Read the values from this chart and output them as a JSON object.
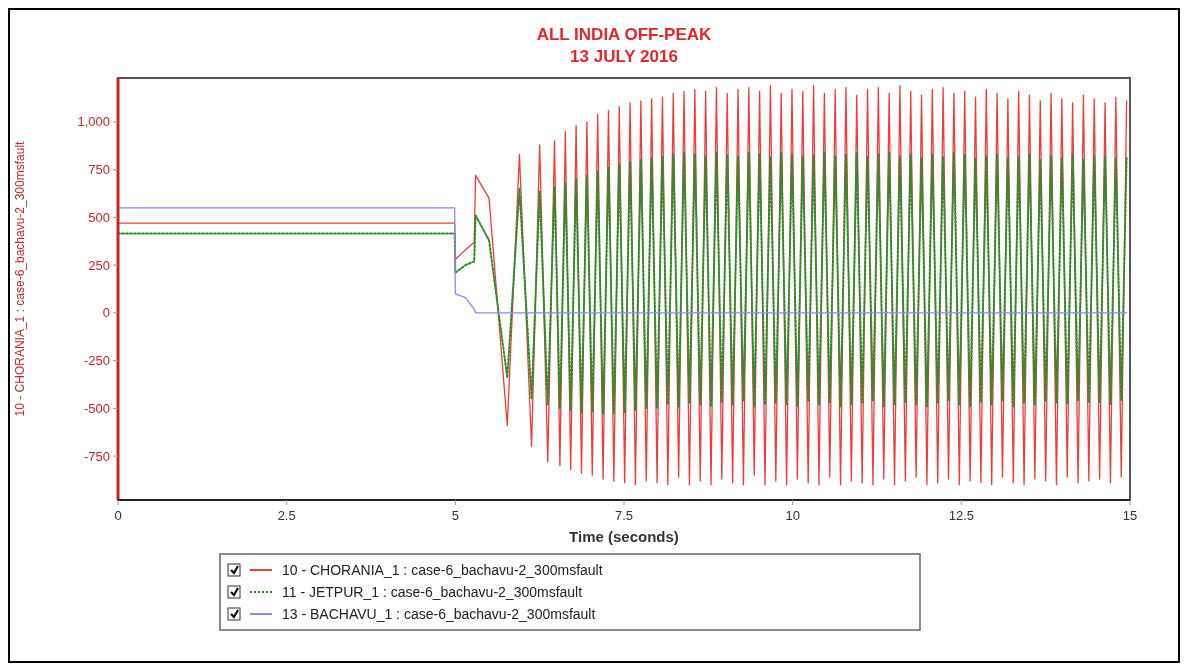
{
  "chart_data": {
    "type": "line",
    "title": "ALL INDIA OFF-PEAK",
    "subtitle": "13 JULY 2016",
    "xlabel": "Time (seconds)",
    "ylabel": "10 - CHORANIA_1 : case-6_bachavu-2_300msfault",
    "xlim": [
      0,
      15
    ],
    "xticks": [
      0,
      2.5,
      5,
      7.5,
      10,
      12.5,
      15
    ],
    "ylim": [
      -980,
      1230
    ],
    "yticks": [
      {
        "value": -750,
        "label": "-750"
      },
      {
        "value": -500,
        "label": "-500"
      },
      {
        "value": -250,
        "label": "-250"
      },
      0,
      250,
      500,
      750,
      {
        "value": 1000,
        "label": "1,000"
      }
    ],
    "grid": false,
    "legend": "bottom",
    "marker": "none",
    "x": [
      0,
      4.99,
      5.0,
      5.15,
      5.28,
      5.3,
      5.5,
      5.77,
      5.95,
      6.13,
      6.25,
      6.37,
      6.47,
      6.55,
      6.63,
      6.71,
      6.79,
      6.87,
      6.95,
      7.03,
      7.11,
      7.19,
      7.27,
      7.35,
      7.43,
      7.51,
      7.59,
      7.67,
      7.75,
      7.83,
      7.91,
      7.99,
      8.07,
      8.15,
      8.23,
      8.31,
      8.39,
      8.47,
      8.55,
      8.63,
      8.71,
      8.79,
      8.87,
      8.95,
      9.03,
      9.11,
      9.19,
      9.27,
      9.35,
      9.43,
      9.51,
      9.59,
      9.67,
      9.75,
      9.83,
      9.91,
      9.99,
      10.07,
      10.15,
      10.23,
      10.31,
      10.39,
      10.47,
      10.55,
      10.63,
      10.71,
      10.79,
      10.87,
      10.95,
      11.03,
      11.11,
      11.19,
      11.27,
      11.35,
      11.43,
      11.51,
      11.59,
      11.67,
      11.75,
      11.83,
      11.91,
      11.99,
      12.07,
      12.15,
      12.23,
      12.31,
      12.39,
      12.47,
      12.55,
      12.63,
      12.71,
      12.79,
      12.87,
      12.95,
      13.03,
      13.11,
      13.19,
      13.27,
      13.35,
      13.43,
      13.51,
      13.59,
      13.67,
      13.75,
      13.83,
      13.91,
      13.99,
      14.07,
      14.15,
      14.23,
      14.31,
      14.39,
      14.47,
      14.55,
      14.63,
      14.71,
      14.79,
      14.87,
      14.95
    ],
    "series": [
      {
        "name": "10 - CHORANIA_1 : case-6_bachavu-2_300msfault",
        "color": "#f03c3c",
        "line_style": "solid",
        "values": [
          470,
          470,
          280,
          330,
          370,
          720,
          600,
          -590,
          830,
          -700,
          880,
          -780,
          900,
          -800,
          950,
          -820,
          980,
          -840,
          1000,
          -850,
          1040,
          -870,
          1060,
          -880,
          1080,
          -890,
          1100,
          -900,
          1110,
          -880,
          1120,
          -890,
          1130,
          -900,
          1150,
          -860,
          1160,
          -900,
          1170,
          -880,
          1160,
          -900,
          1180,
          -870,
          1150,
          -890,
          1170,
          -900,
          1180,
          -850,
          1160,
          -900,
          1190,
          -880,
          1150,
          -900,
          1170,
          -870,
          1160,
          -890,
          1190,
          -900,
          1150,
          -860,
          1170,
          -900,
          1180,
          -880,
          1140,
          -890,
          1170,
          -900,
          1180,
          -870,
          1150,
          -900,
          1190,
          -880,
          1160,
          -860,
          1140,
          -900,
          1170,
          -890,
          1180,
          -870,
          1150,
          -900,
          1160,
          -880,
          1130,
          -890,
          1170,
          -900,
          1150,
          -860,
          1120,
          -890,
          1160,
          -900,
          1140,
          -870,
          1110,
          -880,
          1150,
          -900,
          1120,
          -860,
          1100,
          -890,
          1140,
          -880,
          1120,
          -870,
          1100,
          -890,
          1130,
          -860,
          1110
        ]
      },
      {
        "name": "11 - JETPUR_1 : case-6_bachavu-2_300msfault",
        "color": "#2e8b2e",
        "line_style": "dotted",
        "values": [
          415,
          415,
          210,
          250,
          270,
          510,
          380,
          -340,
          650,
          -450,
          640,
          -480,
          660,
          -500,
          680,
          -510,
          700,
          -520,
          720,
          -520,
          740,
          -530,
          760,
          -530,
          780,
          -520,
          790,
          -510,
          800,
          -500,
          810,
          -500,
          820,
          -480,
          830,
          -490,
          840,
          -470,
          830,
          -480,
          820,
          -490,
          840,
          -470,
          830,
          -480,
          820,
          -460,
          840,
          -490,
          830,
          -480,
          820,
          -470,
          840,
          -480,
          830,
          -490,
          820,
          -460,
          830,
          -480,
          840,
          -470,
          820,
          -490,
          830,
          -480,
          840,
          -470,
          820,
          -460,
          830,
          -490,
          840,
          -480,
          820,
          -470,
          830,
          -480,
          810,
          -490,
          830,
          -470,
          820,
          -460,
          840,
          -480,
          830,
          -490,
          810,
          -470,
          820,
          -480,
          830,
          -460,
          810,
          -490,
          820,
          -470,
          830,
          -480,
          800,
          -460,
          820,
          -470,
          810,
          -480,
          830,
          -460,
          800,
          -470,
          820,
          -470,
          820,
          -480,
          810,
          -460,
          820
        ]
      },
      {
        "name": "13 - BACHAVU_1 : case-6_bachavu-2_300msfault",
        "color": "#8c8ce6",
        "line_style": "solid",
        "values": [
          550,
          550,
          100,
          80,
          20,
          0,
          0,
          0,
          0,
          0,
          0,
          0,
          0,
          0,
          0,
          0,
          0,
          0,
          0,
          0,
          0,
          0,
          0,
          0,
          0,
          0,
          0,
          0,
          0,
          0,
          0,
          0,
          0,
          0,
          0,
          0,
          0,
          0,
          0,
          0,
          0,
          0,
          0,
          0,
          0,
          0,
          0,
          0,
          0,
          0,
          0,
          0,
          0,
          0,
          0,
          0,
          0,
          0,
          0,
          0,
          0,
          0,
          0,
          0,
          0,
          0,
          0,
          0,
          0,
          0,
          0,
          0,
          0,
          0,
          0,
          0,
          0,
          0,
          0,
          0,
          0,
          0,
          0,
          0,
          0,
          0,
          0,
          0,
          0,
          0,
          0,
          0,
          0,
          0,
          0,
          0,
          0,
          0,
          0,
          0,
          0,
          0,
          0,
          0,
          0,
          0,
          0,
          0,
          0,
          0,
          0,
          0,
          0,
          0,
          0,
          0,
          0,
          0,
          0
        ]
      }
    ]
  }
}
